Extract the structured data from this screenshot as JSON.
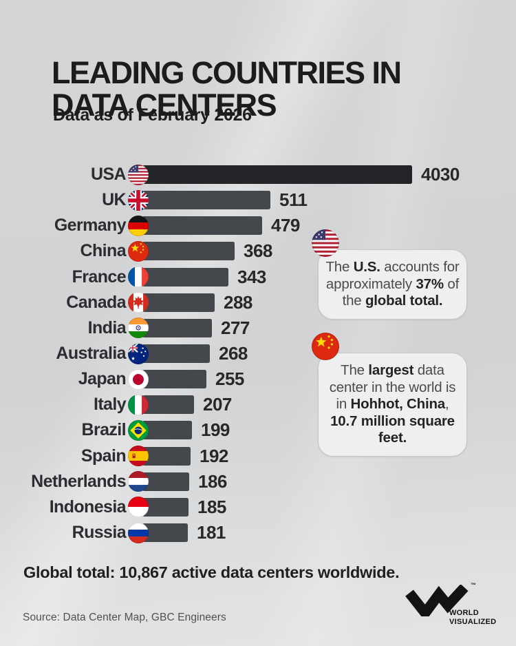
{
  "header": {
    "title_line1": "LEADING COUNTRIES IN",
    "title_line2": "DATA CENTERS",
    "subtitle": "Data as of February 2026"
  },
  "chart_data": {
    "type": "bar",
    "orientation": "horizontal",
    "categories": [
      "USA",
      "UK",
      "Germany",
      "China",
      "France",
      "Canada",
      "India",
      "Australia",
      "Japan",
      "Italy",
      "Brazil",
      "Spain",
      "Netherlands",
      "Indonesia",
      "Russia"
    ],
    "values": [
      4030,
      511,
      479,
      368,
      343,
      288,
      277,
      268,
      255,
      207,
      199,
      192,
      186,
      185,
      181
    ],
    "flags": [
      "usa",
      "uk",
      "germany",
      "china",
      "france",
      "canada",
      "india",
      "australia",
      "japan",
      "italy",
      "brazil",
      "spain",
      "netherlands",
      "indonesia",
      "russia"
    ],
    "bar_color": "#44474c",
    "leader_bar_color": "#232428",
    "legend": "none",
    "grid": "off",
    "value_labels_shown": true
  },
  "callouts": [
    {
      "flag": "usa",
      "segments": [
        {
          "text": "The ",
          "bold": false
        },
        {
          "text": "U.S.",
          "bold": true
        },
        {
          "text": " accounts for approximately ",
          "bold": false
        },
        {
          "text": "37%",
          "bold": true
        },
        {
          "text": " of the ",
          "bold": false
        },
        {
          "text": "global total.",
          "bold": true
        }
      ]
    },
    {
      "flag": "china",
      "segments": [
        {
          "text": "The ",
          "bold": false
        },
        {
          "text": "largest",
          "bold": true
        },
        {
          "text": " data center in the world is in ",
          "bold": false
        },
        {
          "text": "Hohhot, China",
          "bold": true
        },
        {
          "text": ", ",
          "bold": false
        },
        {
          "text": "10.7 million square feet.",
          "bold": true
        }
      ]
    }
  ],
  "footer": {
    "global_total_label": "Global total:",
    "global_total_value": "10,867",
    "global_total_suffix": "active data centers worldwide.",
    "source": "Source: Data Center Map, GBC Engineers"
  },
  "logo": {
    "icon": "world-visualized-w-icon",
    "line1": "WORLD",
    "line2": "VISUALIZED",
    "trademark": "™"
  },
  "colors": {
    "background": "#d3d4d5",
    "title": "#1c1c1e",
    "bar": "#44474c",
    "leader_bar": "#232428",
    "callout_background": "#efefef"
  }
}
